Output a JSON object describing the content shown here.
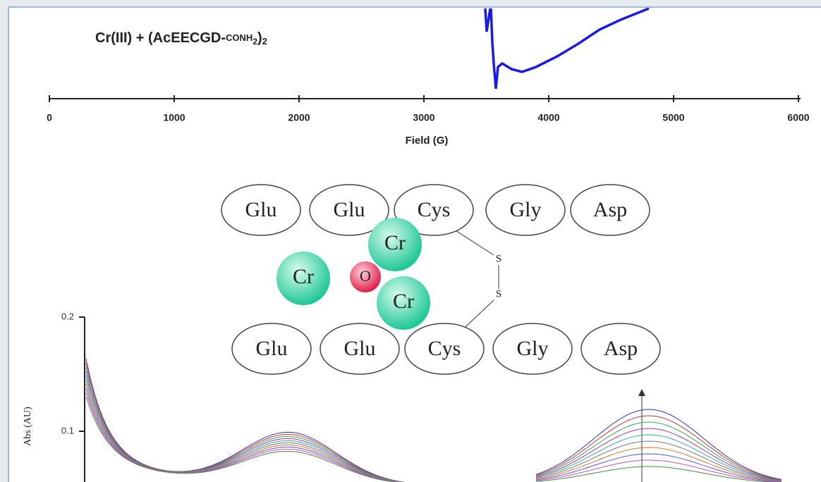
{
  "epr": {
    "label_parts": [
      "Cr(III) + (AcEECGD-",
      "CONH",
      "2",
      ")",
      "2"
    ],
    "ticks": [
      0,
      1000,
      2000,
      3000,
      4000,
      5000,
      6000
    ],
    "xlabel": "Field (G)"
  },
  "diagram": {
    "top_row": [
      "Glu",
      "Glu",
      "Cys",
      "Gly",
      "Asp"
    ],
    "bottom_row": [
      "Glu",
      "Glu",
      "Cys",
      "Gly",
      "Asp"
    ],
    "metals": [
      "Cr",
      "Cr",
      "Cr"
    ],
    "oxygen": "O",
    "sulfur": [
      "S",
      "S"
    ]
  },
  "uv": {
    "yticks": [
      0.2,
      0.1
    ],
    "ylabel": "Abs (AU)"
  }
}
